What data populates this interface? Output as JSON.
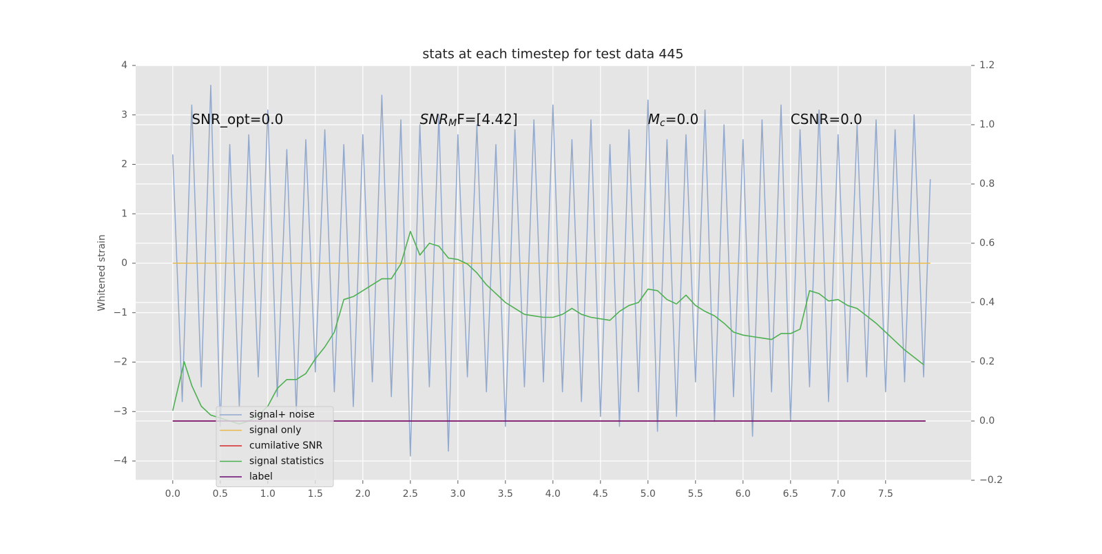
{
  "chart_data": {
    "type": "line",
    "title": "stats at each timestep for test data 445",
    "ylabel": "Whitened strain",
    "xlim": [
      -0.39,
      8.4
    ],
    "ylim": [
      -4.39,
      4.0
    ],
    "y2lim": [
      -0.2,
      1.2
    ],
    "xticks": [
      {
        "value": 0,
        "label": "0.0"
      },
      0.5,
      {
        "value": 1,
        "label": "1.0"
      },
      1.5,
      {
        "value": 2,
        "label": "2.0"
      },
      2.5,
      {
        "value": 3,
        "label": "3.0"
      },
      3.5,
      {
        "value": 4,
        "label": "4.0"
      },
      4.5,
      {
        "value": 5,
        "label": "5.0"
      },
      5.5,
      {
        "value": 6,
        "label": "6.0"
      },
      6.5,
      {
        "value": 7,
        "label": "7.0"
      },
      7.5
    ],
    "yticks": [
      {
        "value": -4,
        "label": "−4"
      },
      {
        "value": -3,
        "label": "−3"
      },
      {
        "value": -2,
        "label": "−2"
      },
      {
        "value": -1,
        "label": "−1"
      },
      0,
      1,
      2,
      3,
      4
    ],
    "y2ticks": [
      {
        "value": -0.2,
        "label": "−0.2"
      },
      {
        "value": 0,
        "label": "0.0"
      },
      0.2,
      0.4,
      0.6,
      0.8,
      {
        "value": 1,
        "label": "1.0"
      },
      1.2
    ],
    "grid": true,
    "legend": "lower left",
    "annotations": [
      {
        "x": 0.2,
        "y": 2.9,
        "parts": [
          "SNR_opt=0.0"
        ]
      },
      {
        "x": 2.6,
        "y": 2.9,
        "parts": [
          "SNR",
          "M",
          "F=[4.42]"
        ]
      },
      {
        "x": 5.0,
        "y": 2.9,
        "parts": [
          "M",
          "c",
          "=0.0"
        ]
      },
      {
        "x": 6.5,
        "y": 2.9,
        "parts": [
          "CSNR=0.0"
        ]
      }
    ],
    "series": [
      {
        "name": "signal+ noise",
        "color": "#92a8cd",
        "axis": "y",
        "x": [
          0,
          0.1,
          0.2,
          0.3,
          0.4,
          0.5,
          0.6,
          0.7,
          0.8,
          0.9,
          1,
          1.1,
          1.2,
          1.3,
          1.4,
          1.5,
          1.6,
          1.7,
          1.8,
          1.9,
          2,
          2.1,
          2.2,
          2.3,
          2.4,
          2.5,
          2.6,
          2.7,
          2.8,
          2.9,
          3,
          3.1,
          3.2,
          3.3,
          3.4,
          3.5,
          3.6,
          3.7,
          3.8,
          3.9,
          4,
          4.1,
          4.2,
          4.3,
          4.4,
          4.5,
          4.6,
          4.7,
          4.8,
          4.9,
          5,
          5.1,
          5.2,
          5.3,
          5.4,
          5.5,
          5.6,
          5.7,
          5.8,
          5.9,
          6,
          6.1,
          6.2,
          6.3,
          6.4,
          6.5,
          6.6,
          6.7,
          6.8,
          6.9,
          7,
          7.1,
          7.2,
          7.3,
          7.4,
          7.5,
          7.6,
          7.7,
          7.8,
          7.9,
          7.97
        ],
        "values": [
          2.2,
          -2.8,
          3.2,
          -2.5,
          3.6,
          -3.3,
          2.4,
          -2.9,
          2.6,
          -2.3,
          3.1,
          -2.7,
          2.3,
          -3.0,
          2.5,
          -2.2,
          2.7,
          -2.6,
          2.4,
          -2.9,
          2.6,
          -2.4,
          3.4,
          -2.7,
          2.9,
          -3.9,
          2.8,
          -2.5,
          3.0,
          -3.8,
          2.6,
          -2.3,
          2.8,
          -2.6,
          2.4,
          -3.3,
          2.7,
          -2.5,
          2.9,
          -2.4,
          3.2,
          -2.6,
          2.5,
          -2.8,
          2.9,
          -3.1,
          2.4,
          -3.3,
          2.7,
          -2.6,
          3.3,
          -3.4,
          2.5,
          -3.1,
          2.6,
          -2.4,
          3.1,
          -3.2,
          2.8,
          -2.7,
          2.5,
          -3.5,
          2.9,
          -2.6,
          3.2,
          -3.2,
          2.7,
          -2.5,
          3.1,
          -2.8,
          2.6,
          -2.4,
          2.8,
          -2.3,
          2.9,
          -2.6,
          2.7,
          -2.4,
          3.0,
          -2.3,
          1.7
        ]
      },
      {
        "name": "signal only",
        "color": "#e8b94a",
        "axis": "y",
        "x": [
          0,
          7.97
        ],
        "values": [
          0,
          0
        ]
      },
      {
        "name": "cumilative SNR",
        "color": "#d62728",
        "axis": "y2",
        "x": [
          0,
          7.92
        ],
        "values": [
          0,
          0
        ]
      },
      {
        "name": "signal statistics",
        "color": "#4caf50",
        "axis": "y2",
        "x": [
          0,
          0.12,
          0.2,
          0.3,
          0.4,
          0.5,
          0.6,
          0.7,
          0.8,
          0.9,
          1,
          1.1,
          1.2,
          1.3,
          1.4,
          1.5,
          1.6,
          1.7,
          1.8,
          1.9,
          2,
          2.1,
          2.2,
          2.3,
          2.4,
          2.5,
          2.6,
          2.7,
          2.8,
          2.9,
          3,
          3.1,
          3.2,
          3.3,
          3.4,
          3.5,
          3.6,
          3.7,
          3.8,
          3.9,
          4,
          4.1,
          4.2,
          4.3,
          4.4,
          4.5,
          4.6,
          4.7,
          4.8,
          4.9,
          5,
          5.1,
          5.2,
          5.3,
          5.4,
          5.5,
          5.6,
          5.7,
          5.8,
          5.9,
          6,
          6.1,
          6.2,
          6.3,
          6.4,
          6.5,
          6.6,
          6.7,
          6.8,
          6.9,
          7,
          7.1,
          7.2,
          7.3,
          7.4,
          7.5,
          7.6,
          7.7,
          7.8,
          7.9
        ],
        "values": [
          0.035,
          0.2,
          0.12,
          0.05,
          0.02,
          0.01,
          0.0,
          -0.01,
          0.0,
          0.02,
          0.05,
          0.11,
          0.14,
          0.14,
          0.16,
          0.21,
          0.25,
          0.3,
          0.41,
          0.42,
          0.44,
          0.46,
          0.48,
          0.48,
          0.53,
          0.64,
          0.56,
          0.6,
          0.59,
          0.55,
          0.545,
          0.53,
          0.5,
          0.46,
          0.43,
          0.4,
          0.38,
          0.36,
          0.355,
          0.35,
          0.35,
          0.36,
          0.38,
          0.36,
          0.35,
          0.345,
          0.34,
          0.37,
          0.39,
          0.4,
          0.445,
          0.44,
          0.41,
          0.395,
          0.425,
          0.39,
          0.37,
          0.355,
          0.33,
          0.3,
          0.29,
          0.285,
          0.28,
          0.275,
          0.295,
          0.295,
          0.31,
          0.44,
          0.43,
          0.405,
          0.41,
          0.39,
          0.38,
          0.355,
          0.33,
          0.3,
          0.27,
          0.24,
          0.215,
          0.19
        ]
      },
      {
        "name": "label",
        "color": "#6a0a72",
        "axis": "y2",
        "x": [
          0,
          7.92
        ],
        "values": [
          0,
          0
        ]
      }
    ]
  }
}
